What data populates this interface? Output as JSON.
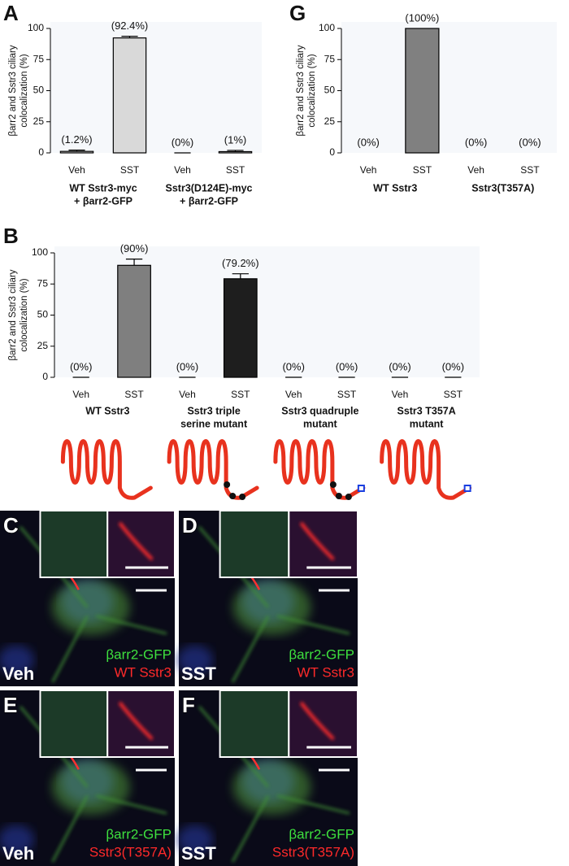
{
  "chart_data": [
    {
      "panel": "A",
      "type": "bar",
      "ylabel": [
        "βarr2 and Sstr3 ciliary",
        "colocalization (%)"
      ],
      "categories": [
        "Veh",
        "SST",
        "Veh",
        "SST"
      ],
      "groups": [
        [
          "WT Sstr3-myc",
          "+ βarr2-GFP"
        ],
        [
          "Sstr3(D124E)-myc",
          "+ βarr2-GFP"
        ]
      ],
      "values": [
        1.2,
        92.4,
        0,
        1
      ],
      "errors": [
        1,
        1.3,
        0,
        1
      ],
      "value_labels": [
        "(1.2%)",
        "(92.4%)",
        "(0%)",
        "(1%)"
      ],
      "colors": [
        "#d9d9d9",
        "#d9d9d9",
        "#d9d9d9",
        "#d9d9d9"
      ],
      "ylim": [
        0,
        100
      ],
      "yticks": [
        0,
        25,
        50,
        75,
        100
      ]
    },
    {
      "panel": "G",
      "type": "bar",
      "ylabel": [
        "βarr2 and Sstr3 ciliary",
        "colocalization (%)"
      ],
      "categories": [
        "Veh",
        "SST",
        "Veh",
        "SST"
      ],
      "groups": [
        [
          "WT Sstr3"
        ],
        [
          "Sstr3(T357A)"
        ]
      ],
      "values": [
        0,
        100,
        0,
        0
      ],
      "value_labels": [
        "(0%)",
        "(100%)",
        "(0%)",
        "(0%)"
      ],
      "colors": [
        "#808080",
        "#808080",
        "#808080",
        "#808080"
      ],
      "ylim": [
        0,
        100
      ],
      "yticks": [
        0,
        25,
        50,
        75,
        100
      ]
    },
    {
      "panel": "B",
      "type": "bar",
      "ylabel": [
        "βarr2 and Sstr3 ciliary",
        "colocalization (%)"
      ],
      "categories": [
        "Veh",
        "SST",
        "Veh",
        "SST",
        "Veh",
        "SST",
        "Veh",
        "SST"
      ],
      "groups": [
        [
          "WT Sstr3"
        ],
        [
          "Sstr3 triple",
          "serine mutant"
        ],
        [
          "Sstr3 quadruple",
          "mutant"
        ],
        [
          "Sstr3 T357A",
          "mutant"
        ]
      ],
      "values": [
        0,
        90,
        0,
        79.2,
        0,
        0,
        0,
        0
      ],
      "errors": [
        0,
        5,
        0,
        4,
        0,
        0,
        0,
        0
      ],
      "value_labels": [
        "(0%)",
        "(90%)",
        "(0%)",
        "(79.2%)",
        "(0%)",
        "(0%)",
        "(0%)",
        "(0%)"
      ],
      "colors": [
        "#7f7f7f",
        "#7f7f7f",
        "#1e1e1e",
        "#1e1e1e",
        "#7f7f7f",
        "#7f7f7f",
        "#7f7f7f",
        "#7f7f7f"
      ],
      "ylim": [
        0,
        100
      ],
      "yticks": [
        0,
        25,
        50,
        75,
        100
      ]
    }
  ],
  "images": [
    {
      "panel": "C",
      "condition": "Veh",
      "labels": [
        "βarr2-GFP",
        "WT Sstr3"
      ]
    },
    {
      "panel": "D",
      "condition": "SST",
      "labels": [
        "βarr2-GFP",
        "WT Sstr3"
      ]
    },
    {
      "panel": "E",
      "condition": "Veh",
      "labels": [
        "βarr2-GFP",
        "Sstr3(T357A)"
      ]
    },
    {
      "panel": "F",
      "condition": "SST",
      "labels": [
        "βarr2-GFP",
        "Sstr3(T357A)"
      ]
    }
  ]
}
